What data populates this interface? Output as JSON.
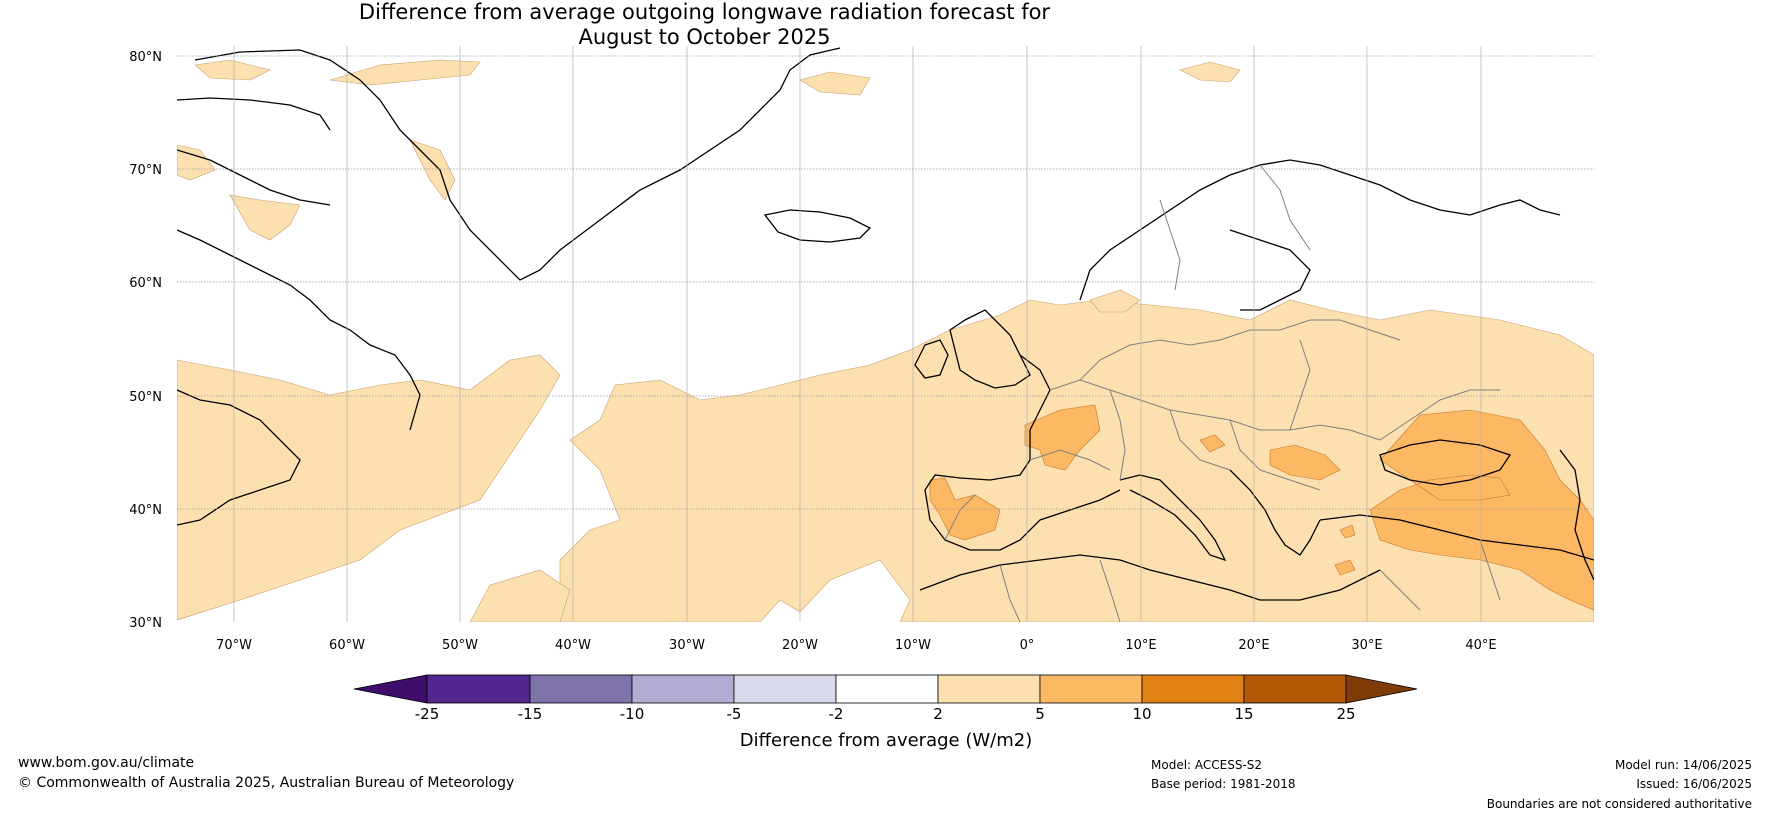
{
  "title_line1": "Difference from average outgoing longwave radiation forecast for",
  "title_line2": "August to October 2025",
  "lat_labels": [
    "80°N",
    "70°N",
    "60°N",
    "50°N",
    "40°N",
    "30°N"
  ],
  "lon_labels": [
    "70°W",
    "60°W",
    "50°W",
    "40°W",
    "30°W",
    "20°W",
    "10°W",
    "0°",
    "10°E",
    "20°E",
    "30°E",
    "40°E"
  ],
  "colorbar": {
    "ticks": [
      "-25",
      "-15",
      "-10",
      "-5",
      "-2",
      "2",
      "5",
      "10",
      "15",
      "25"
    ],
    "colors": [
      "#3f0d6b",
      "#54278f",
      "#8073ac",
      "#b2abd2",
      "#d8daeb",
      "#ffffff",
      "#fde0b0",
      "#fdb863",
      "#e08214",
      "#b35806",
      "#7f3b08"
    ],
    "label": "Difference from average (W/m2)"
  },
  "footer": {
    "url": "www.bom.gov.au/climate",
    "copyright": "© Commonwealth of Australia 2025, Australian Bureau of Meteorology",
    "model": "Model: ACCESS-S2",
    "base_period": "Base period: 1981-2018",
    "model_run": "Model run: 14/06/2025",
    "issued": "Issued: 16/06/2025",
    "disclaimer": "Boundaries are not considered authoritative"
  },
  "map_colors": {
    "land_outline": "#000000",
    "border": "#808080",
    "anomaly_light": "#fde0b0",
    "anomaly_medium": "#fdb863",
    "grid": "#b0b0b0"
  }
}
